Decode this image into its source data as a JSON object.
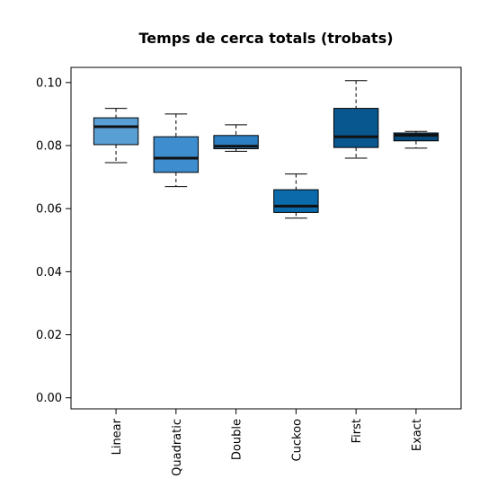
{
  "chart_data": {
    "type": "box",
    "title": "Temps de cerca totals (trobats)",
    "xlabel": "",
    "ylabel": "",
    "ylim": [
      -0.0035,
      0.1048
    ],
    "yticks": [
      0.0,
      0.02,
      0.04,
      0.06,
      0.08,
      0.1
    ],
    "ytick_labels": [
      "0.00",
      "0.02",
      "0.04",
      "0.06",
      "0.08",
      "0.10"
    ],
    "categories": [
      "Linear",
      "Quadratic",
      "Double",
      "Cuckoo",
      "First",
      "Exact"
    ],
    "boxes": [
      {
        "name": "Linear",
        "whisker_low": 0.0746,
        "q1": 0.0803,
        "median": 0.086,
        "q3": 0.0888,
        "whisker_high": 0.0918,
        "color": "#5a9fd4"
      },
      {
        "name": "Quadratic",
        "whisker_low": 0.067,
        "q1": 0.0715,
        "median": 0.076,
        "q3": 0.0828,
        "whisker_high": 0.09,
        "color": "#3e8dce"
      },
      {
        "name": "Double",
        "whisker_low": 0.0782,
        "q1": 0.079,
        "median": 0.0798,
        "q3": 0.0832,
        "whisker_high": 0.0866,
        "color": "#2b7ec1"
      },
      {
        "name": "Cuckoo",
        "whisker_low": 0.057,
        "q1": 0.0588,
        "median": 0.0608,
        "q3": 0.066,
        "whisker_high": 0.071,
        "color": "#0a6aaa"
      },
      {
        "name": "First",
        "whisker_low": 0.076,
        "q1": 0.0794,
        "median": 0.0828,
        "q3": 0.0918,
        "whisker_high": 0.1006,
        "color": "#08578f"
      },
      {
        "name": "Exact",
        "whisker_low": 0.0792,
        "q1": 0.0815,
        "median": 0.0833,
        "q3": 0.084,
        "whisker_high": 0.0845,
        "color": "#064a7c"
      }
    ],
    "grid": false,
    "legend": "none"
  }
}
